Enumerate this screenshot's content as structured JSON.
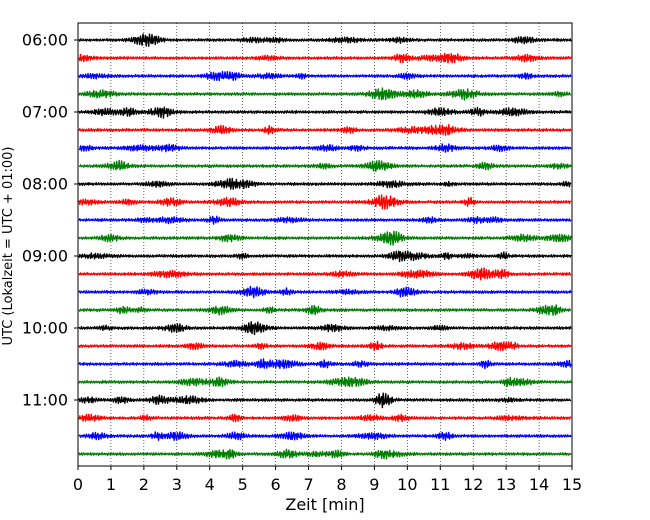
{
  "chart_data": {
    "type": "line",
    "title": "",
    "xlabel": "Zeit  [min]",
    "ylabel": "UTC (Lokalzeit = UTC + 01:00)",
    "xlim": [
      0,
      15
    ],
    "x_ticks": [
      "0",
      "1",
      "2",
      "3",
      "4",
      "5",
      "6",
      "7",
      "8",
      "9",
      "10",
      "11",
      "12",
      "13",
      "14",
      "15"
    ],
    "y_tick_labels": [
      "06:00",
      "07:00",
      "08:00",
      "09:00",
      "10:00",
      "11:00"
    ],
    "grid": "vertical dotted at each minute",
    "trace_interval_min": 15,
    "start_time": "06:00",
    "traces": [
      {
        "start": "06:00",
        "color": "#000000"
      },
      {
        "start": "06:15",
        "color": "#ff0000"
      },
      {
        "start": "06:30",
        "color": "#0000ff"
      },
      {
        "start": "06:45",
        "color": "#008000"
      },
      {
        "start": "07:00",
        "color": "#000000"
      },
      {
        "start": "07:15",
        "color": "#ff0000"
      },
      {
        "start": "07:30",
        "color": "#0000ff"
      },
      {
        "start": "07:45",
        "color": "#008000"
      },
      {
        "start": "08:00",
        "color": "#000000"
      },
      {
        "start": "08:15",
        "color": "#ff0000"
      },
      {
        "start": "08:30",
        "color": "#0000ff"
      },
      {
        "start": "08:45",
        "color": "#008000"
      },
      {
        "start": "09:00",
        "color": "#000000"
      },
      {
        "start": "09:15",
        "color": "#ff0000"
      },
      {
        "start": "09:30",
        "color": "#0000ff"
      },
      {
        "start": "09:45",
        "color": "#008000"
      },
      {
        "start": "10:00",
        "color": "#000000"
      },
      {
        "start": "10:15",
        "color": "#ff0000"
      },
      {
        "start": "10:30",
        "color": "#0000ff"
      },
      {
        "start": "10:45",
        "color": "#008000"
      },
      {
        "start": "11:00",
        "color": "#000000"
      },
      {
        "start": "11:15",
        "color": "#ff0000"
      },
      {
        "start": "11:30",
        "color": "#0000ff"
      },
      {
        "start": "11:45",
        "color": "#008000"
      }
    ]
  }
}
